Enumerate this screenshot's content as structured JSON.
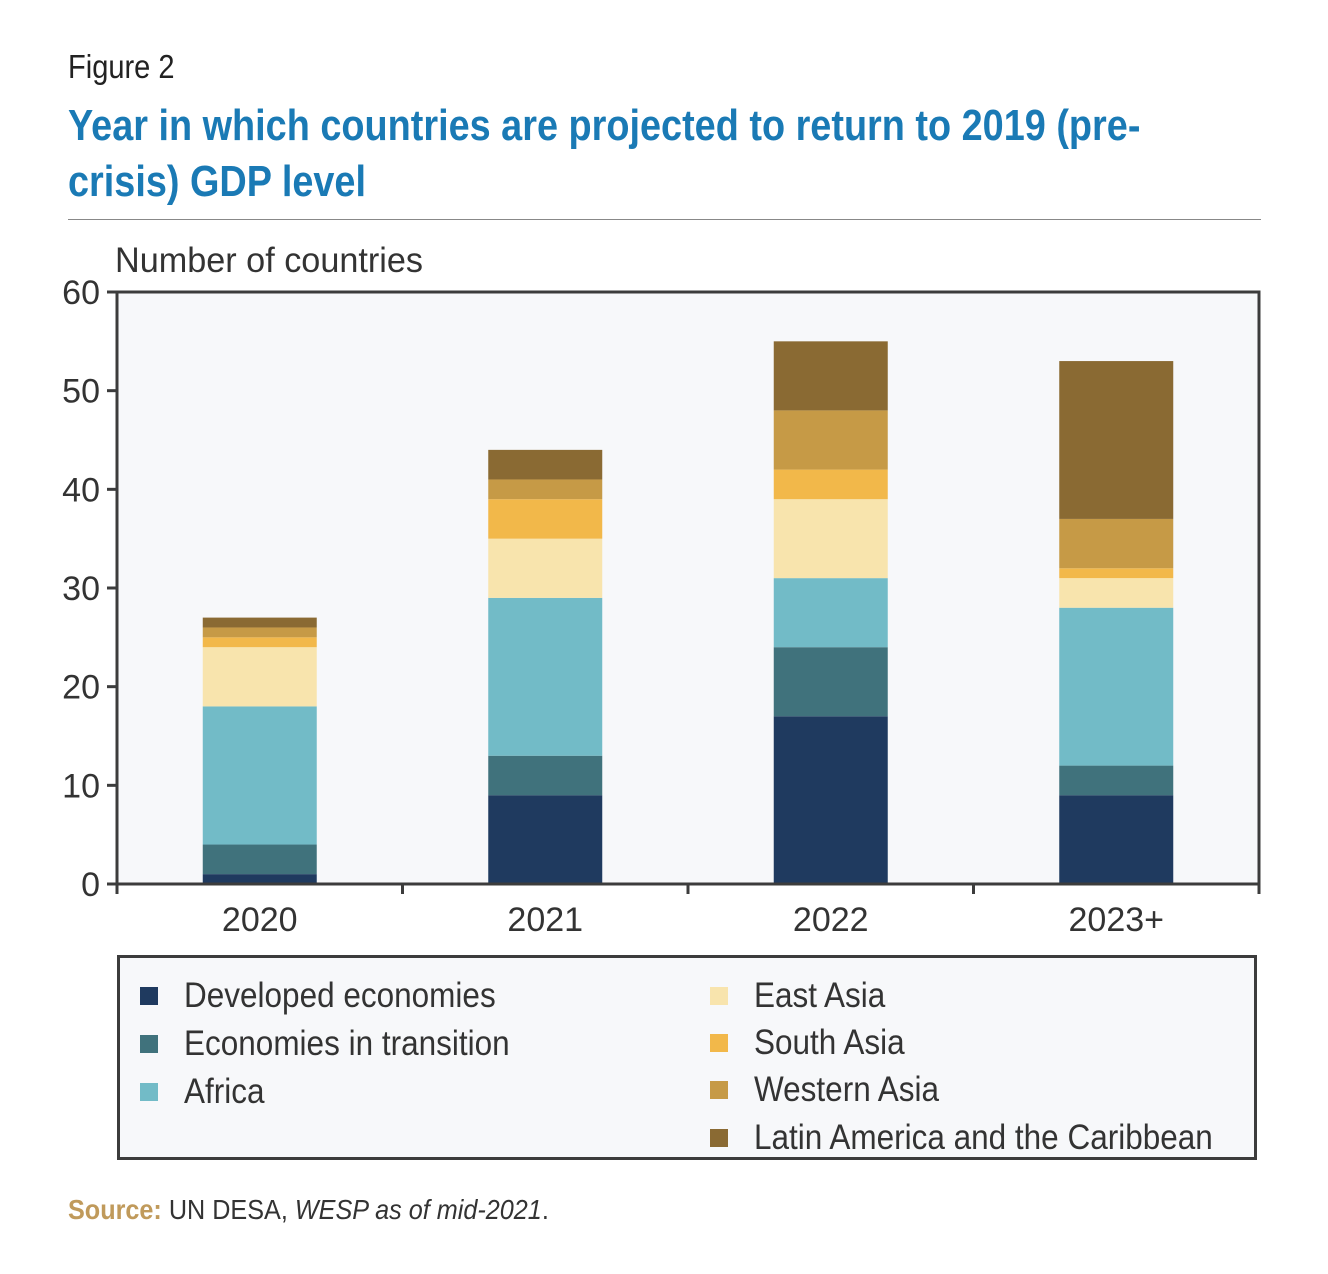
{
  "figure_label": "Figure 2",
  "title": "Year in which countries are projected to return to 2019 (pre-crisis) GDP level",
  "source": {
    "label": "Source:",
    "text": "UN DESA, ",
    "italic": "WESP as of mid-2021",
    "end": "."
  },
  "chart_data": {
    "type": "bar",
    "stacked": true,
    "title": "Year in which countries are projected to return to 2019 (pre-crisis) GDP level",
    "xlabel": "",
    "ylabel": "Number of countries",
    "ylim": [
      0,
      60
    ],
    "yticks": [
      0,
      10,
      20,
      30,
      40,
      50,
      60
    ],
    "grid": false,
    "legend_position": "bottom",
    "categories": [
      "2020",
      "2021",
      "2022",
      "2023+"
    ],
    "series": [
      {
        "name": "Developed economies",
        "color": "#1f3a5f",
        "values": [
          1,
          9,
          17,
          9
        ]
      },
      {
        "name": "Economies in transition",
        "color": "#40727c",
        "values": [
          3,
          4,
          7,
          3
        ]
      },
      {
        "name": "Africa",
        "color": "#72bbc7",
        "values": [
          14,
          16,
          7,
          16
        ]
      },
      {
        "name": "East Asia",
        "color": "#f8e4ad",
        "values": [
          6,
          6,
          8,
          3
        ]
      },
      {
        "name": "South Asia",
        "color": "#f2b84a",
        "values": [
          1,
          4,
          3,
          1
        ]
      },
      {
        "name": "Western Asia",
        "color": "#c69a46",
        "values": [
          1,
          2,
          6,
          5
        ]
      },
      {
        "name": "Latin America and the Caribbean",
        "color": "#8a6a33",
        "values": [
          1,
          3,
          7,
          16
        ]
      }
    ]
  }
}
